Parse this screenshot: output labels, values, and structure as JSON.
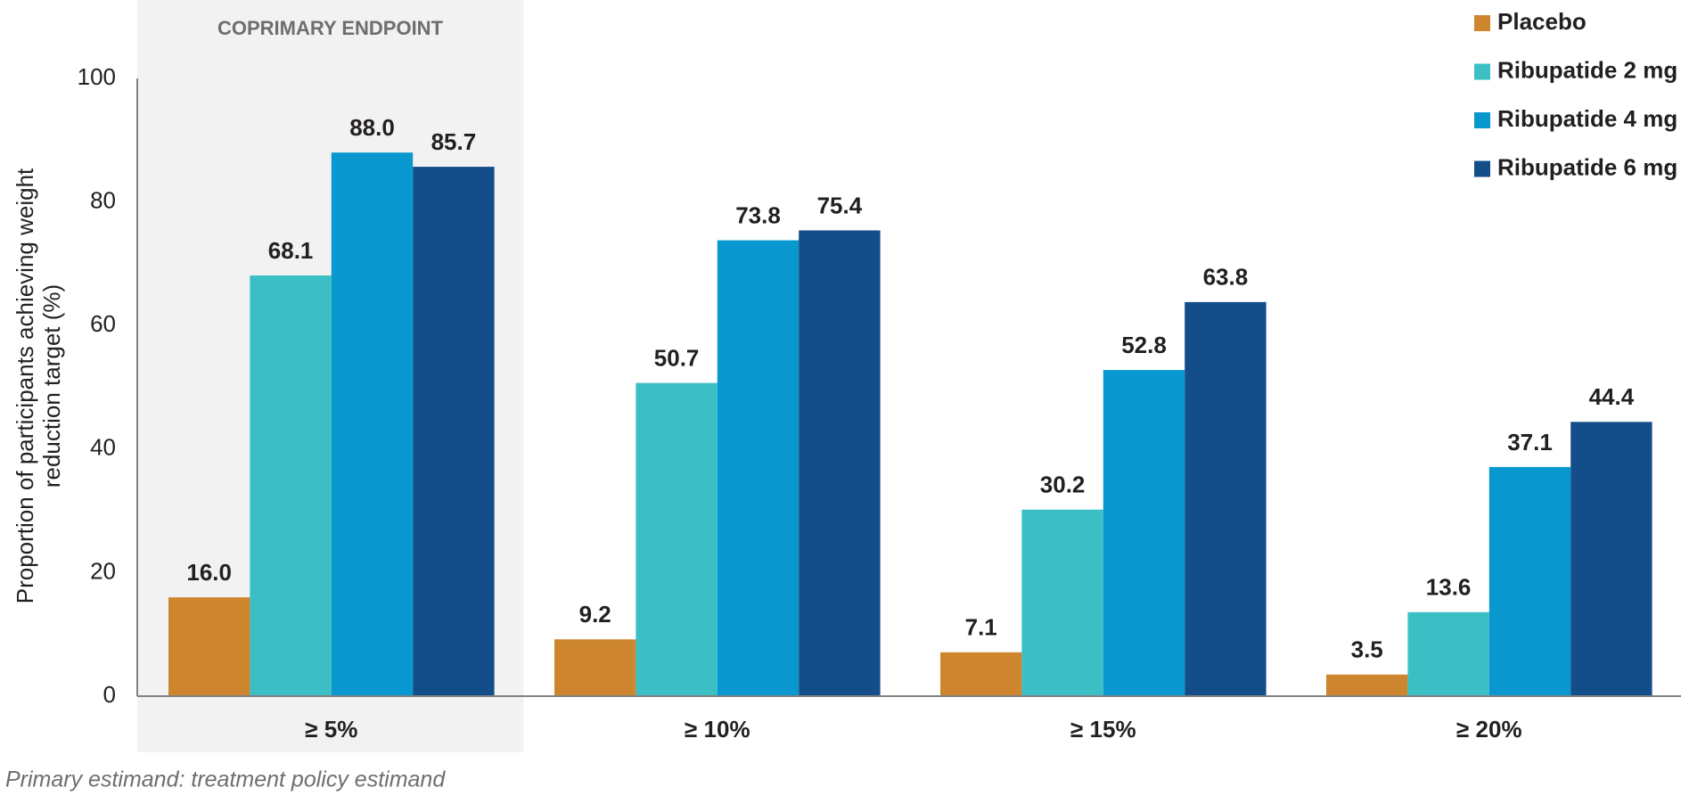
{
  "chart_data": {
    "type": "bar",
    "categories": [
      "≥ 5%",
      "≥ 10%",
      "≥ 15%",
      "≥ 20%"
    ],
    "series": [
      {
        "name": "Placebo",
        "color": "#cd862e",
        "values": [
          16.0,
          9.2,
          7.1,
          3.5
        ],
        "value_labels": [
          "16.0",
          "9.2",
          "7.1",
          "3.5"
        ]
      },
      {
        "name": "Ribupatide 2 mg",
        "color": "#3bbfc4",
        "values": [
          68.1,
          50.7,
          30.2,
          13.6
        ],
        "value_labels": [
          "68.1",
          "50.7",
          "30.2",
          "13.6"
        ]
      },
      {
        "name": "Ribupatide 4 mg",
        "color": "#0898cf",
        "values": [
          88.0,
          73.8,
          52.8,
          37.1
        ],
        "value_labels": [
          "88.0",
          "73.8",
          "52.8",
          "37.1"
        ]
      },
      {
        "name": "Ribupatide 6 mg",
        "color": "#134e8a",
        "values": [
          85.7,
          75.4,
          63.8,
          44.4
        ],
        "value_labels": [
          "85.7",
          "75.4",
          "63.8",
          "44.4"
        ]
      }
    ],
    "y_label": [
      "Proportion of participants achieving weight",
      "reduction target (%)"
    ],
    "ylim": [
      0,
      100
    ],
    "yticks": [
      0,
      20,
      40,
      60,
      80,
      100
    ],
    "annotation": {
      "text": "COPRIMARY ENDPOINT",
      "category": "≥ 5%"
    },
    "footnote": "Primary estimand:  treatment policy estimand",
    "legend": "top-right",
    "grid": false
  }
}
